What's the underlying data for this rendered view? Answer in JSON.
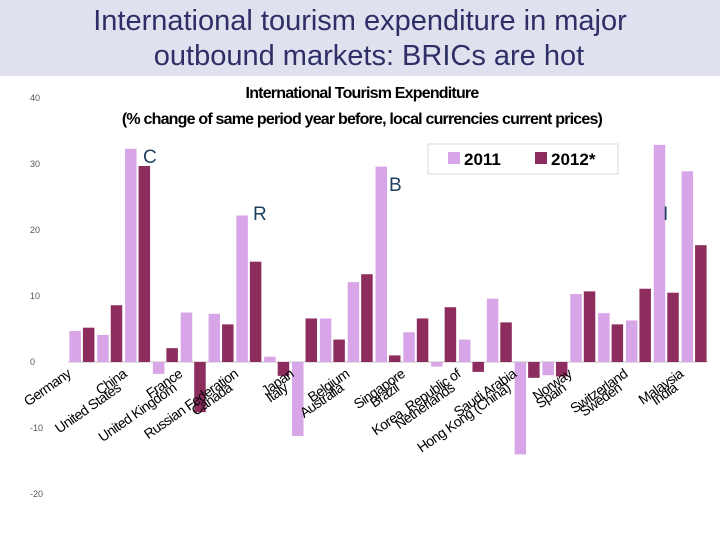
{
  "slide": {
    "title_line1": "International tourism expenditure in major",
    "title_line2": "outbound markets: BRICs are hot"
  },
  "colors": {
    "series_2011": "#d8a6e8",
    "series_2012": "#8c2d5e",
    "header_band": "#dfe1ef",
    "title_text": "#2d2f66",
    "bric_labels": "#1f3f5f"
  },
  "annotations": {
    "c": "C",
    "r": "R",
    "b": "B",
    "i": "I"
  },
  "chart_data": {
    "type": "bar",
    "title": "International Tourism Expenditure",
    "subtitle": "(% change of same period year before, local currencies current prices)",
    "ylim": [
      -20,
      40
    ],
    "yticks": [
      -20,
      -10,
      0,
      10,
      20,
      30,
      40
    ],
    "ytick_labels": [
      "-20",
      "-10",
      "0",
      "10",
      "20",
      "30",
      "40"
    ],
    "grid": false,
    "legend_position": "top-right",
    "categories": [
      "Germany",
      "United States",
      "China",
      "United Kingdom",
      "France",
      "Canada",
      "Russian Federation",
      "Italy",
      "Japan",
      "Australia",
      "Belgium",
      "Brazil",
      "Singapore",
      "Netherlands",
      "Korea, Republic of",
      "Hong Kong (China)",
      "Saudi Arabia",
      "Spain",
      "Norway",
      "Sweden",
      "Switzerland",
      "India",
      "Malaysia"
    ],
    "series": [
      {
        "name": "2011",
        "color": "#d8a6e8",
        "values": [
          4.7,
          4.1,
          32.3,
          -1.8,
          7.5,
          7.3,
          22.2,
          0.8,
          -11.2,
          6.6,
          12.1,
          29.6,
          4.5,
          -0.7,
          3.4,
          9.6,
          -14.0,
          -2.0,
          10.3,
          7.4,
          6.3,
          32.9,
          28.9
        ]
      },
      {
        "name": "2012*",
        "color": "#8c2d5e",
        "values": [
          5.2,
          8.6,
          29.7,
          2.1,
          -7.6,
          5.7,
          15.2,
          -2.1,
          6.6,
          3.4,
          13.3,
          1.0,
          6.6,
          8.3,
          -1.5,
          6.0,
          -2.4,
          -2.2,
          10.7,
          5.7,
          11.1,
          10.5,
          17.7
        ]
      }
    ]
  }
}
